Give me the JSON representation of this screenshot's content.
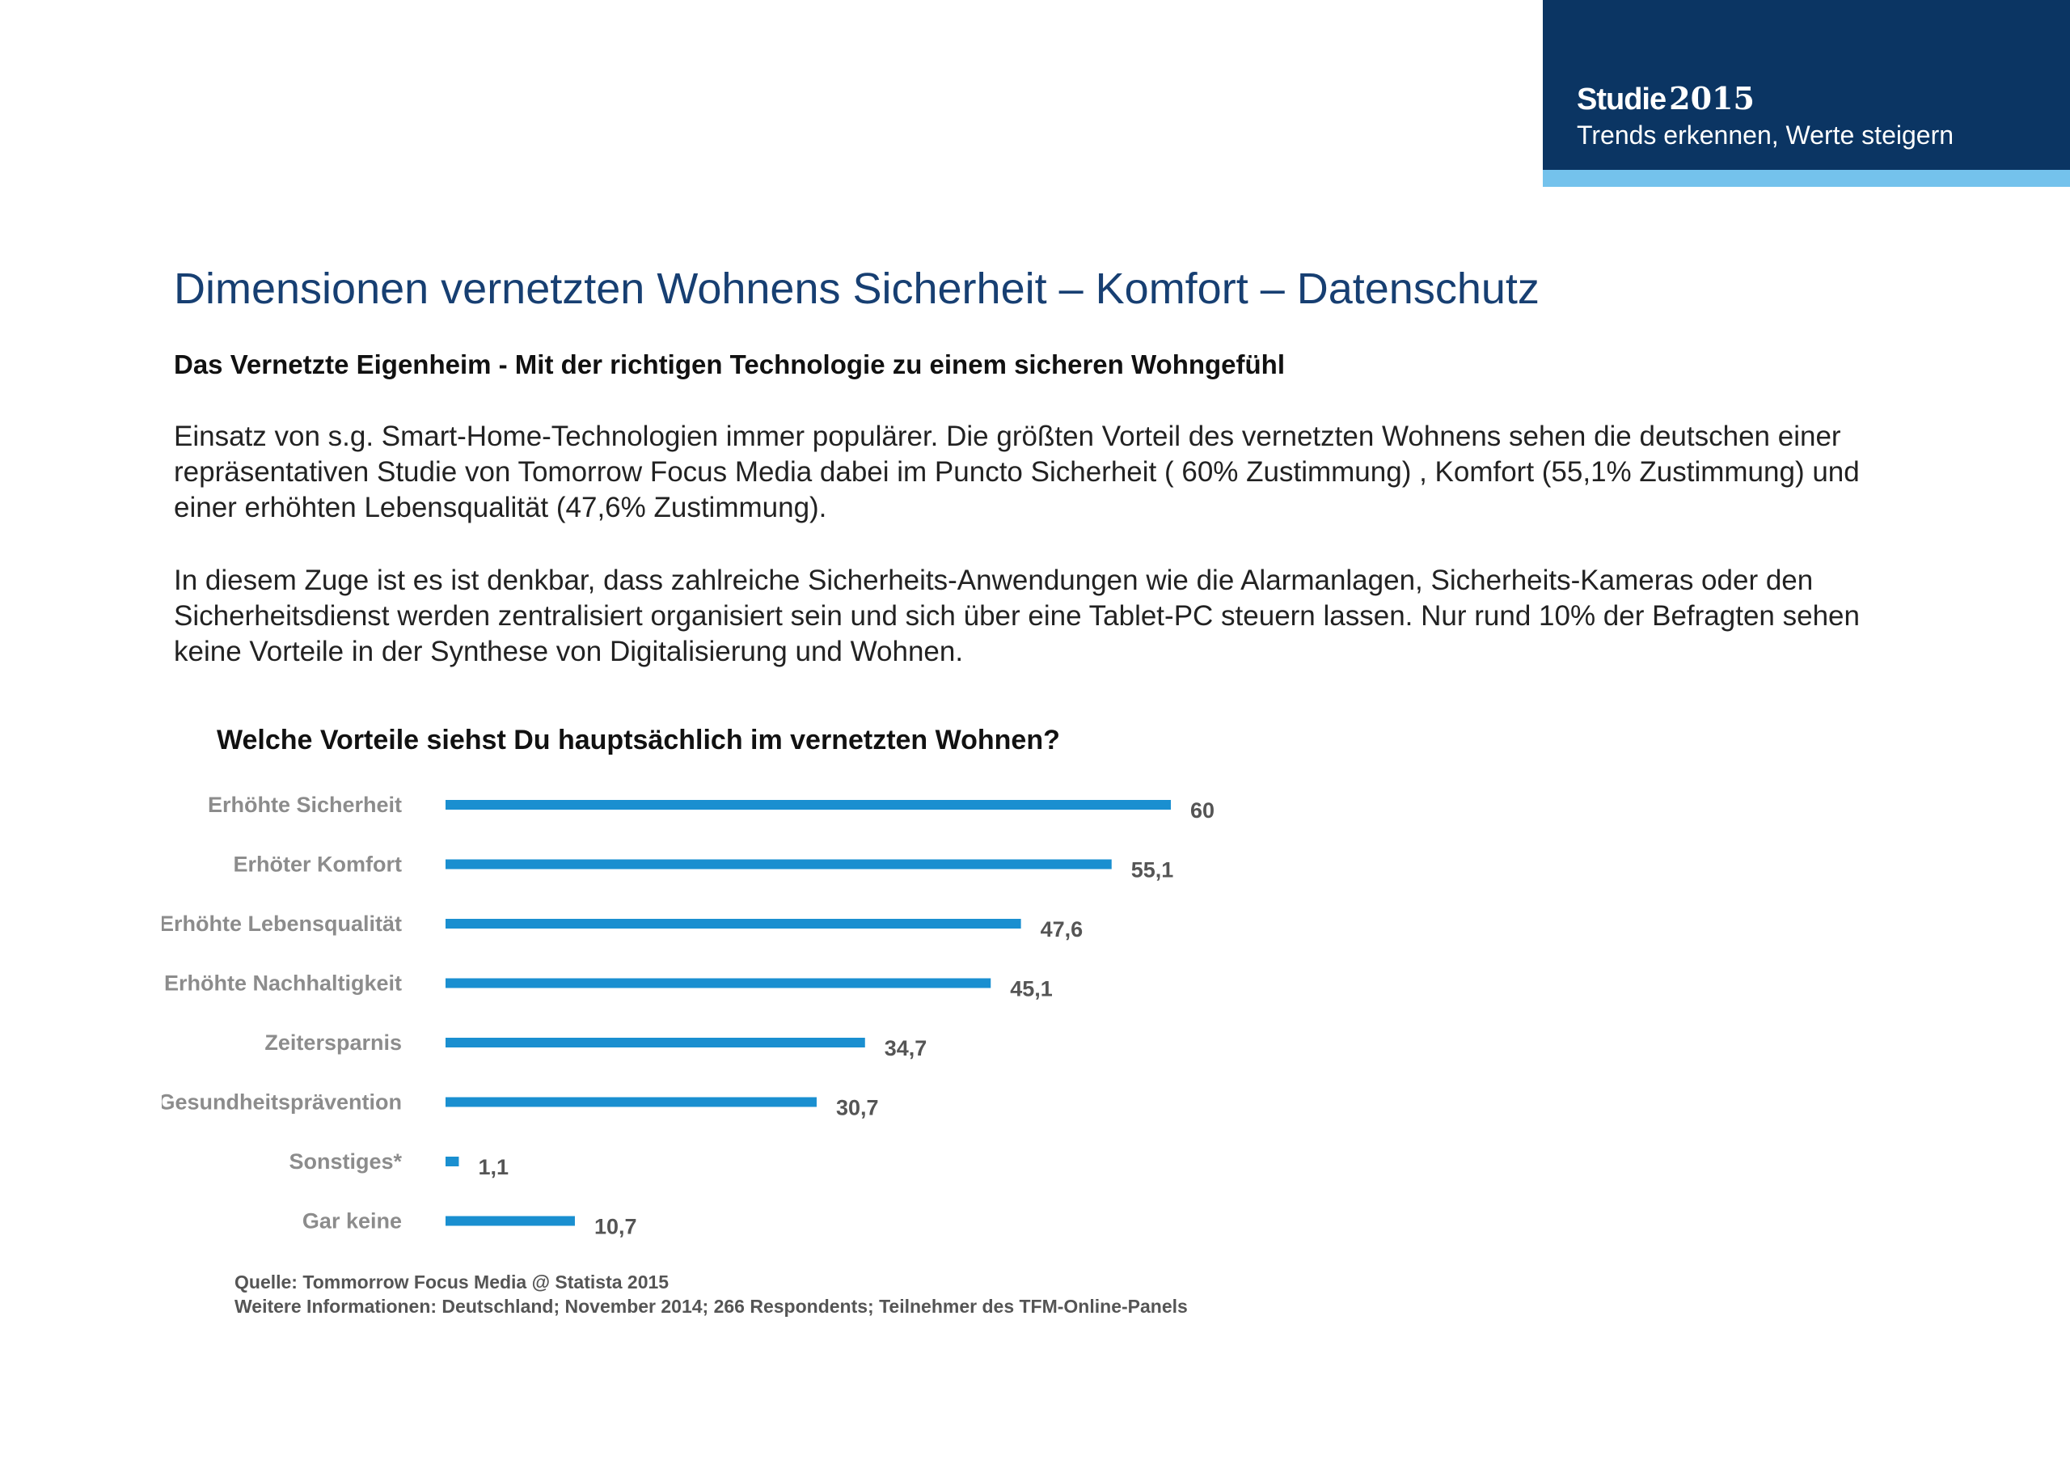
{
  "header": {
    "brand_name": "Studie",
    "brand_year": "2015",
    "brand_subtitle": "Trends erkennen, Werte steigern",
    "colors": {
      "primary": "#0b3563",
      "accent": "#74c2ec"
    }
  },
  "page": {
    "title": "Dimensionen vernetzten Wohnens Sicherheit – Komfort – Datenschutz",
    "subtitle": "Das Vernetzte Eigenheim - Mit der richtigen Technologie zu einem sicheren Wohngefühl",
    "paragraphs": [
      "Einsatz von s.g. Smart-Home-Technologien immer populärer. Die größten Vorteil des vernetzten Wohnens sehen die deutschen einer repräsentativen Studie von Tomorrow Focus Media dabei im Puncto Sicherheit ( 60% Zustimmung) , Komfort (55,1% Zustimmung) und einer erhöhten Lebensqualität (47,6% Zustimmung).",
      "In diesem Zuge ist es ist denkbar, dass zahlreiche Sicherheits-Anwendungen wie die Alarmanlagen, Sicherheits-Kameras oder den Sicherheitsdienst werden zentralisiert organisiert sein und sich über eine Tablet-PC steuern lassen. Nur rund 10% der Befragten sehen keine Vorteile in der Synthese von Digitalisierung und Wohnen."
    ]
  },
  "chart_data": {
    "type": "bar",
    "orientation": "horizontal",
    "title": "Welche Vorteile siehst Du hauptsächlich im vernetzten Wohnen?",
    "categories": [
      "Erhöhte Sicherheit",
      "Erhöter Komfort",
      "Erhöhte Lebensqualität",
      "Erhöhte Nachhaltigkeit",
      "Zeitersparnis",
      "Gesundheitsprävention",
      "Sonstiges*",
      "Gar keine"
    ],
    "values": [
      60,
      55.1,
      47.6,
      45.1,
      34.7,
      30.7,
      1.1,
      10.7
    ],
    "value_labels": [
      "60",
      "55,1",
      "47,6",
      "45,1",
      "34,7",
      "30,7",
      "1,1",
      "10,7"
    ],
    "xlim": [
      0,
      60
    ],
    "grid": false,
    "bar_color": "#1a8fd0",
    "source_lines": [
      "Quelle: Tommorrow Focus Media @ Statista 2015",
      "Weitere Informationen: Deutschland; November 2014; 266 Respondents; Teilnehmer des TFM-Online-Panels"
    ]
  }
}
